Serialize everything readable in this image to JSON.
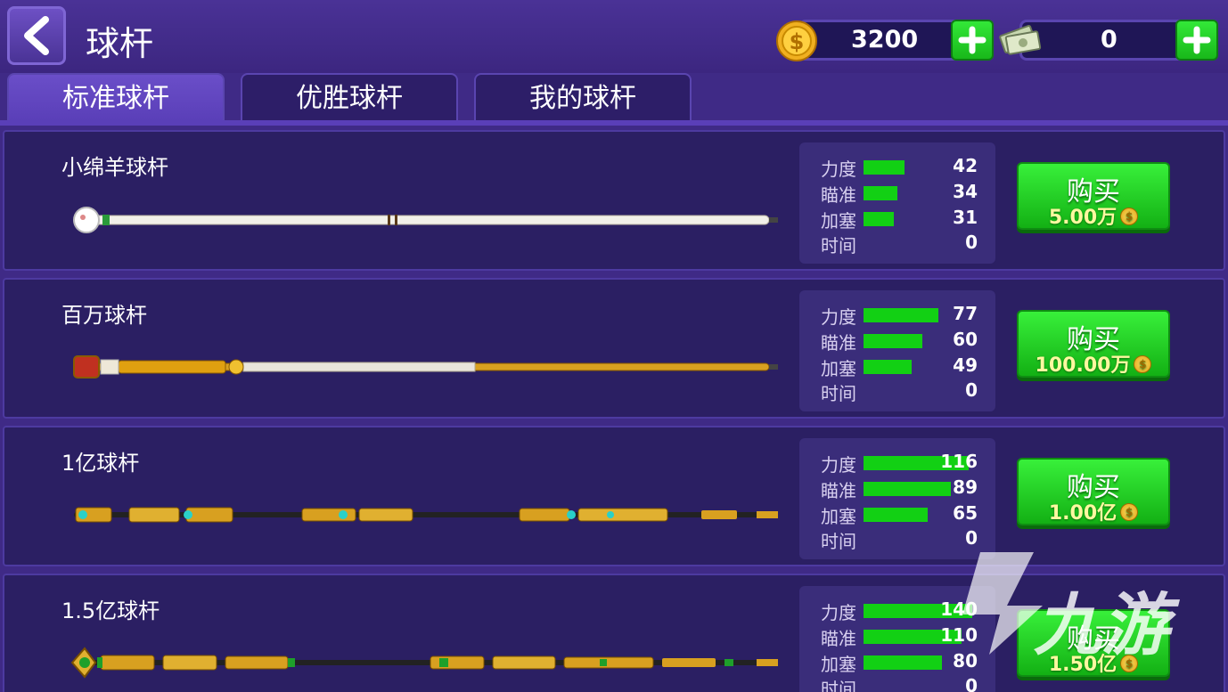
{
  "header": {
    "title": "球杆",
    "coins": "3200",
    "cash": "0"
  },
  "tabs": [
    {
      "label": "标准球杆",
      "active": true
    },
    {
      "label": "优胜球杆",
      "active": false
    },
    {
      "label": "我的球杆",
      "active": false
    }
  ],
  "stat_labels": {
    "power": "力度",
    "aim": "瞄准",
    "spin": "加塞",
    "time": "时间"
  },
  "cues": [
    {
      "name": "小绵羊球杆",
      "power": 42,
      "aim": 34,
      "spin": 31,
      "time": 0,
      "buy_label": "购买",
      "price": "5.00万"
    },
    {
      "name": "百万球杆",
      "power": 77,
      "aim": 60,
      "spin": 49,
      "time": 0,
      "buy_label": "购买",
      "price": "100.00万"
    },
    {
      "name": "1亿球杆",
      "power": 116,
      "aim": 89,
      "spin": 65,
      "time": 0,
      "buy_label": "购买",
      "price": "1.00亿"
    },
    {
      "name": "1.5亿球杆",
      "power": 140,
      "aim": 110,
      "spin": 80,
      "time": 0,
      "buy_label": "购买",
      "price": "1.50亿"
    }
  ],
  "watermark": "九游",
  "colors": {
    "bar": "#12d014",
    "buy_button": "#22cc22",
    "background": "#3f2a86"
  },
  "icons": {
    "back": "back-arrow-icon",
    "coin": "coin-icon",
    "cash": "cash-icon",
    "plus": "plus-icon"
  }
}
